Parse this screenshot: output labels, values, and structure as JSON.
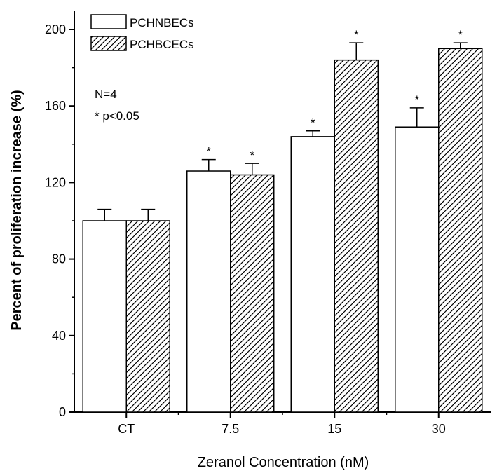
{
  "chart_data": {
    "type": "bar",
    "title": "",
    "xlabel": "Zeranol Concentration (nM)",
    "ylabel": "Percent of proliferation increase (%)",
    "categories": [
      "CT",
      "7.5",
      "15",
      "30"
    ],
    "ylim": [
      0,
      210
    ],
    "yticks": [
      0,
      40,
      80,
      120,
      160,
      200
    ],
    "grid": false,
    "legend_position": "top-left",
    "series": [
      {
        "name": "PCHNBECs",
        "pattern": "solid-white",
        "values": [
          100,
          126,
          144,
          149
        ],
        "errors": [
          6,
          6,
          3,
          10
        ],
        "significant": [
          false,
          true,
          true,
          true
        ]
      },
      {
        "name": "PCHBCECs",
        "pattern": "diagonal-hatch",
        "values": [
          100,
          124,
          184,
          190
        ],
        "errors": [
          6,
          6,
          9,
          3
        ],
        "significant": [
          false,
          true,
          true,
          true
        ]
      }
    ],
    "annotations": [
      "N=4",
      "* p<0.05"
    ],
    "significance_marker": "*"
  },
  "colors": {
    "bar_fill": "#ffffff",
    "bar_stroke": "#000000",
    "hatch": "#000000"
  }
}
